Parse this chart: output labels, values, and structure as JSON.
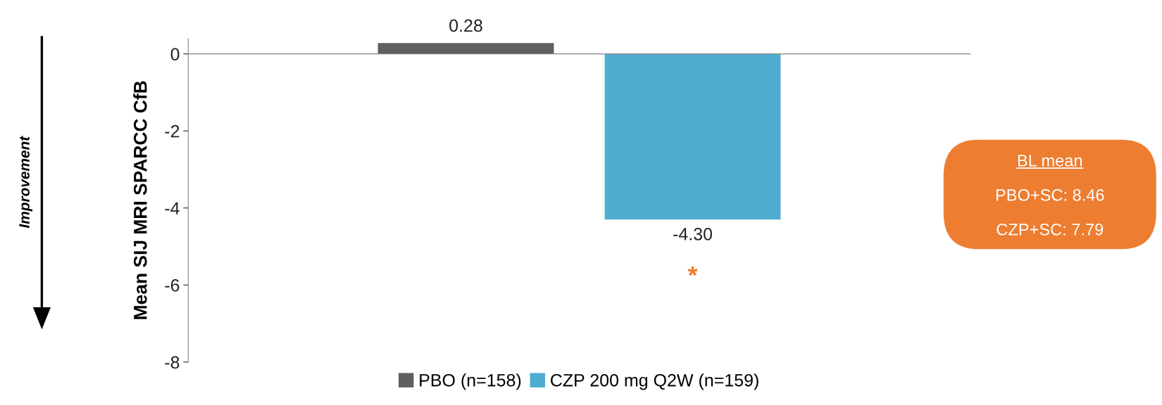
{
  "chart_data": {
    "type": "bar",
    "ylabel": "Mean SIJ MRI SPARCC CfB",
    "categories": [
      null
    ],
    "series": [
      {
        "name": "PBO (n=158)",
        "color": "#5f5f5f",
        "values": [
          0.28
        ],
        "value_labels": [
          "0.28"
        ]
      },
      {
        "name": "CZP 200 mg Q2W (n=159)",
        "color": "#4fadd2",
        "values": [
          -4.3
        ],
        "value_labels": [
          "-4.30"
        ]
      }
    ],
    "ylim": [
      -8,
      0.4
    ],
    "yticks": [
      -8,
      -6,
      -4,
      -2,
      0
    ],
    "legend": "bottom",
    "annotations": [
      "Improvement",
      "*",
      "BL mean",
      "PBO+SC: 8.46",
      "CZP+SC: 7.79"
    ]
  }
}
